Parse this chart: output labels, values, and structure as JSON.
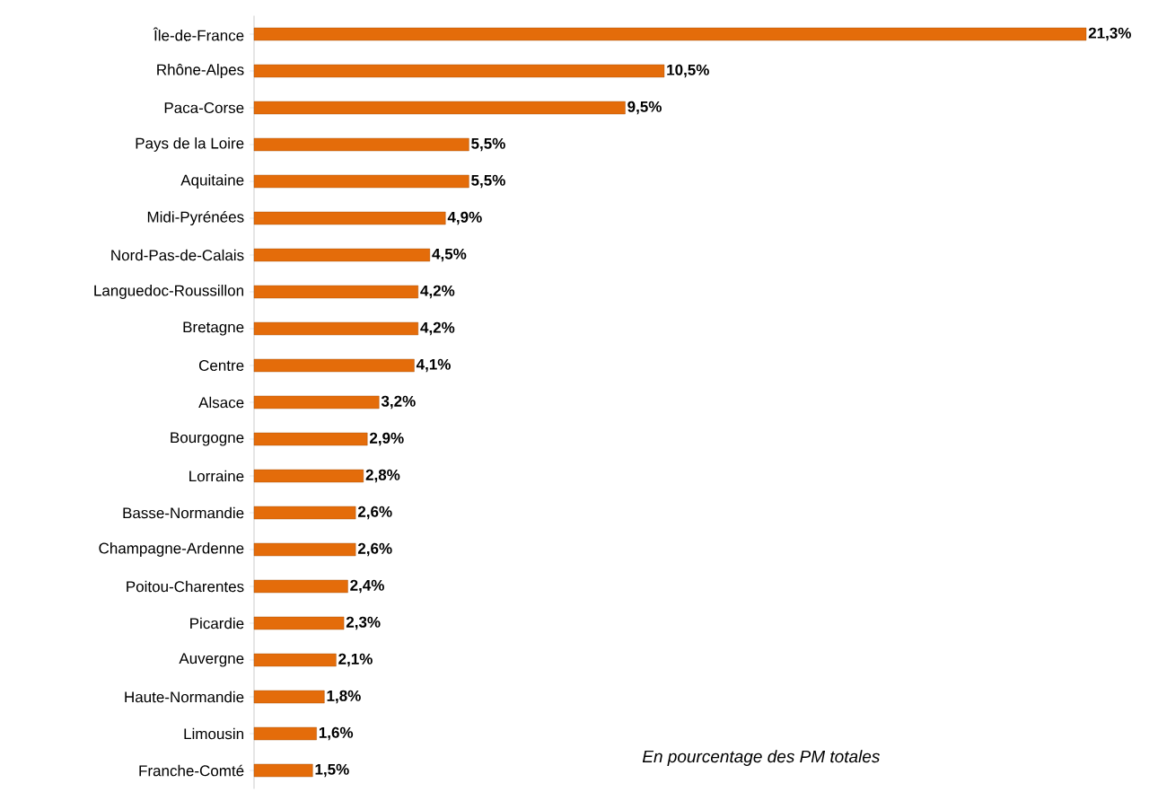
{
  "chart_data": {
    "type": "bar",
    "orientation": "horizontal",
    "categories": [
      "Île-de-France",
      "Rhône-Alpes",
      "Paca-Corse",
      "Pays de la Loire",
      "Aquitaine",
      "Midi-Pyrénées",
      "Nord-Pas-de-Calais",
      "Languedoc-Roussillon",
      "Bretagne",
      "Centre",
      "Alsace",
      "Bourgogne",
      "Lorraine",
      "Basse-Normandie",
      "Champagne-Ardenne",
      "Poitou-Charentes",
      "Picardie",
      "Auvergne",
      "Haute-Normandie",
      "Limousin",
      "Franche-Comté"
    ],
    "values": [
      21.3,
      10.5,
      9.5,
      5.5,
      5.5,
      4.9,
      4.5,
      4.2,
      4.2,
      4.1,
      3.2,
      2.9,
      2.8,
      2.6,
      2.6,
      2.4,
      2.3,
      2.1,
      1.8,
      1.6,
      1.5
    ],
    "value_labels": [
      "21,3%",
      "10,5%",
      "9,5%",
      "5,5%",
      "5,5%",
      "4,9%",
      "4,5%",
      "4,2%",
      "4,2%",
      "4,1%",
      "3,2%",
      "2,9%",
      "2,8%",
      "2,6%",
      "2,6%",
      "2,4%",
      "2,3%",
      "2,1%",
      "1,8%",
      "1,6%",
      "1,5%"
    ],
    "color": "#e46c0a",
    "annotations": [
      "En pourcentage des PM totales"
    ]
  }
}
